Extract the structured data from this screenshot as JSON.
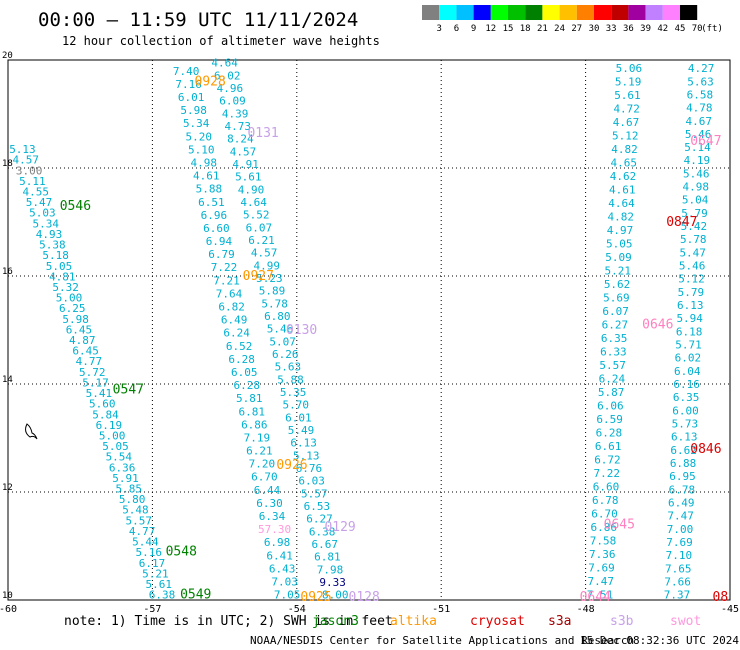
{
  "header": {
    "title": "00:00 – 11:59 UTC 11/11/2024",
    "subtitle": "12 hour collection of altimeter wave heights"
  },
  "colorbar": {
    "labels": [
      "3",
      "6",
      "9",
      "12",
      "15",
      "18",
      "21",
      "24",
      "27",
      "30",
      "33",
      "36",
      "39",
      "42",
      "45",
      "70"
    ],
    "unit": "(ft)",
    "colors": [
      "#808080",
      "#00ffff",
      "#00c0ff",
      "#0000ff",
      "#00ff00",
      "#00c000",
      "#008000",
      "#ffff00",
      "#ffc000",
      "#ff8000",
      "#ff0000",
      "#c00000",
      "#a000a0",
      "#c080ff",
      "#ff80ff",
      "#000000"
    ]
  },
  "chart_data": {
    "type": "scatter",
    "title": "12 hour collection of altimeter wave heights",
    "xlim": [
      -60,
      -45
    ],
    "ylim": [
      10,
      20
    ],
    "x_ticks": [
      "-60",
      "-57",
      "-54",
      "-51",
      "-48",
      "-45"
    ],
    "y_ticks": [
      "10",
      "12",
      "14",
      "16",
      "18",
      "20"
    ],
    "grid": true,
    "colors": {
      "jason3": "#00b0d0",
      "sentinel6": "#ff80c0",
      "altika": "#ff9900",
      "cryosat": "#dd0000",
      "s3a": "#a00000",
      "s3b": "#c8a0e8",
      "swot": "#ff99dd",
      "green": "#008000",
      "ink": "#000000"
    },
    "tracks": [
      {
        "sat": "jason3",
        "x0": -59.7,
        "y0": 18.35,
        "x1": -56.8,
        "y1": 10.1,
        "values": [
          "5.13",
          "4.57",
          "3.00",
          "5.11",
          "4.55",
          "5.47",
          "5.03",
          "5.34",
          "4.93",
          "5.38",
          "5.18",
          "5.05",
          "4.81",
          "5.32",
          "5.00",
          "6.25",
          "5.98",
          "6.45",
          "4.87",
          "6.45",
          "4.77",
          "5.72",
          "5.17",
          "5.41",
          "5.60",
          "5.84",
          "6.19",
          "5.00",
          "5.05",
          "5.54",
          "6.36",
          "5.91",
          "5.85",
          "5.80",
          "5.48",
          "5.57",
          "4.77",
          "5.44",
          "5.16",
          "6.17",
          "5.21",
          "5.61",
          "6.38"
        ]
      },
      {
        "sat": "jason3",
        "x0": -56.3,
        "y0": 19.8,
        "x1": -54.2,
        "y1": 10.1,
        "values": [
          "7.40",
          "7.16",
          "6.01",
          "5.98",
          "5.34",
          "5.20",
          "5.10",
          "4.98",
          "4.61",
          "5.88",
          "6.51",
          "6.96",
          "6.60",
          "6.94",
          "6.79",
          "7.22",
          "7.21",
          "7.64",
          "6.82",
          "6.49",
          "6.24",
          "6.52",
          "6.28",
          "6.05",
          "6.28",
          "5.81",
          "6.81",
          "6.86",
          "7.19",
          "6.21",
          "7.20",
          "6.70",
          "6.44",
          "6.30",
          "6.34",
          "57.30",
          "6.98",
          "6.41",
          "6.43",
          "7.03",
          "7.05"
        ]
      },
      {
        "sat": "jason3",
        "x0": -55.5,
        "y0": 19.95,
        "x1": -53.2,
        "y1": 10.1,
        "values": [
          "4.64",
          "6.02",
          "4.96",
          "6.09",
          "4.39",
          "4.73",
          "8.24",
          "4.57",
          "4.91",
          "5.61",
          "4.90",
          "4.64",
          "5.52",
          "6.07",
          "6.21",
          "4.57",
          "4.99",
          "5.23",
          "5.89",
          "5.78",
          "6.80",
          "5.46",
          "5.07",
          "6.26",
          "5.63",
          "5.88",
          "5.35",
          "5.70",
          "6.01",
          "5.49",
          "6.13",
          "5.13",
          "6.76",
          "6.03",
          "5.57",
          "6.53",
          "6.27",
          "6.38",
          "6.67",
          "6.81",
          "7.98",
          "9.33",
          "8.00"
        ]
      },
      {
        "sat": "jason3",
        "x0": -47.1,
        "y0": 19.85,
        "x1": -47.7,
        "y1": 10.1,
        "values": [
          "5.06",
          "5.19",
          "5.61",
          "4.72",
          "4.67",
          "5.12",
          "4.82",
          "4.65",
          "4.62",
          "4.61",
          "4.64",
          "4.82",
          "4.97",
          "5.05",
          "5.09",
          "5.21",
          "5.62",
          "5.69",
          "6.07",
          "6.27",
          "6.35",
          "6.33",
          "5.57",
          "6.24",
          "5.87",
          "6.06",
          "6.59",
          "6.28",
          "6.61",
          "6.72",
          "7.22",
          "6.60",
          "6.78",
          "6.70",
          "6.86",
          "7.58",
          "7.36",
          "7.69",
          "7.47",
          "7.51"
        ]
      },
      {
        "sat": "jason3",
        "x0": -45.6,
        "y0": 19.85,
        "x1": -46.1,
        "y1": 10.1,
        "values": [
          "4.27",
          "5.63",
          "6.58",
          "4.78",
          "4.67",
          "5.46",
          "5.14",
          "4.19",
          "5.46",
          "4.98",
          "5.04",
          "5.79",
          "5.42",
          "5.78",
          "5.47",
          "5.46",
          "5.12",
          "5.79",
          "6.13",
          "5.94",
          "6.18",
          "5.71",
          "6.02",
          "6.04",
          "6.16",
          "6.35",
          "6.00",
          "5.73",
          "6.13",
          "6.62",
          "6.88",
          "6.95",
          "6.78",
          "6.49",
          "7.47",
          "7.00",
          "7.69",
          "7.10",
          "7.65",
          "7.66",
          "7.37"
        ]
      }
    ],
    "time_labels": [
      {
        "text": "0546",
        "x": -58.6,
        "y": 17.3,
        "sat": "green"
      },
      {
        "text": "0547",
        "x": -57.5,
        "y": 13.9,
        "sat": "green"
      },
      {
        "text": "0548",
        "x": -56.4,
        "y": 10.9,
        "sat": "green"
      },
      {
        "text": "0549",
        "x": -56.1,
        "y": 10.1,
        "sat": "green"
      },
      {
        "text": "0928",
        "x": -55.8,
        "y": 19.6,
        "sat": "altika"
      },
      {
        "text": "0927",
        "x": -54.8,
        "y": 16.0,
        "sat": "altika"
      },
      {
        "text": "0926",
        "x": -54.1,
        "y": 12.5,
        "sat": "altika"
      },
      {
        "text": "0925",
        "x": -53.6,
        "y": 10.06,
        "sat": "altika"
      },
      {
        "text": "0131",
        "x": -54.7,
        "y": 18.65,
        "sat": "s3b"
      },
      {
        "text": "0130",
        "x": -53.9,
        "y": 15.0,
        "sat": "s3b"
      },
      {
        "text": "0129",
        "x": -53.1,
        "y": 11.35,
        "sat": "s3b"
      },
      {
        "text": "0128",
        "x": -52.6,
        "y": 10.06,
        "sat": "s3b"
      },
      {
        "text": "0647",
        "x": -45.5,
        "y": 18.5,
        "sat": "sentinel6"
      },
      {
        "text": "0646",
        "x": -46.5,
        "y": 15.1,
        "sat": "sentinel6"
      },
      {
        "text": "0645",
        "x": -47.3,
        "y": 11.4,
        "sat": "sentinel6"
      },
      {
        "text": "0644",
        "x": -47.8,
        "y": 10.06,
        "sat": "sentinel6"
      },
      {
        "text": "0847",
        "x": -46.0,
        "y": 17.0,
        "sat": "cryosat"
      },
      {
        "text": "0846",
        "x": -45.5,
        "y": 12.8,
        "sat": "cryosat"
      },
      {
        "text": "08",
        "x": -45.2,
        "y": 10.06,
        "sat": "cryosat"
      }
    ]
  },
  "footer": {
    "note_prefix": "note:  1) Time is in UTC; 2) SWH is in feet",
    "legend": [
      {
        "text": "jason3",
        "color": "#008000"
      },
      {
        "text": "altika",
        "color": "#ff9900"
      },
      {
        "text": "cryosat",
        "color": "#dd0000"
      },
      {
        "text": "s3a",
        "color": "#a00000"
      },
      {
        "text": "s3b",
        "color": "#c8a0e8"
      },
      {
        "text": "swot",
        "color": "#ff99dd"
      }
    ],
    "credit": "NOAA/NESDIS Center for Satellite Applications and Research",
    "timestamp": "15 Dec 08:32:36 UTC 2024"
  }
}
